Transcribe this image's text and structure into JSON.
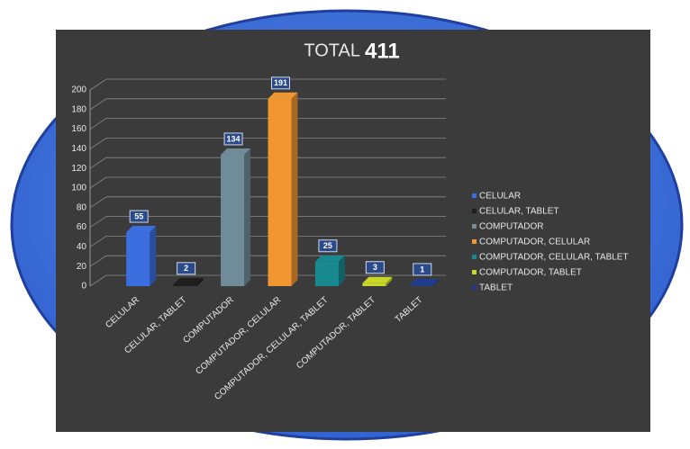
{
  "chart_data": {
    "type": "bar",
    "title": "TOTAL",
    "total": 411,
    "categories": [
      "CELULAR",
      "CELULAR, TABLET",
      "COMPUTADOR",
      "COMPUTADOR, CELULAR",
      "COMPUTADOR, CELULAR, TABLET",
      "COMPUTADOR, TABLET",
      "TABLET"
    ],
    "values": [
      55,
      2,
      134,
      191,
      25,
      3,
      1
    ],
    "colors": [
      "#3b6fe0",
      "#1e1e1e",
      "#6f8c98",
      "#f0952f",
      "#17898f",
      "#c8d82a",
      "#1f3d8c"
    ],
    "ylim": [
      0,
      200
    ],
    "yticks": [
      0,
      20,
      40,
      60,
      80,
      100,
      120,
      140,
      160,
      180,
      200
    ],
    "grid": true,
    "legend": "right"
  }
}
